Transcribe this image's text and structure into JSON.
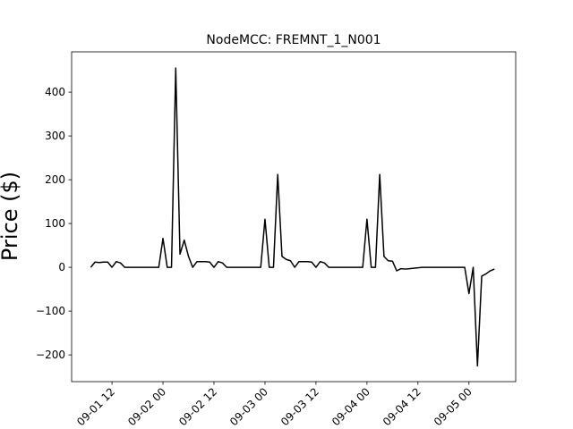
{
  "chart_data": {
    "type": "line",
    "title": "NodeMCC: FREMNT_1_N001",
    "y_label": "Price ($)",
    "color": "#000000",
    "x": [
      "09-01 07:00",
      "09-01 08:00",
      "09-01 09:00",
      "09-01 10:00",
      "09-01 11:00",
      "09-01 12:00",
      "09-01 13:00",
      "09-01 14:00",
      "09-01 15:00",
      "09-01 16:00",
      "09-01 17:00",
      "09-01 18:00",
      "09-01 19:00",
      "09-01 20:00",
      "09-01 21:00",
      "09-01 22:00",
      "09-01 23:00",
      "09-02 00:00",
      "09-02 01:00",
      "09-02 02:00",
      "09-02 03:00",
      "09-02 04:00",
      "09-02 05:00",
      "09-02 06:00",
      "09-02 07:00",
      "09-02 08:00",
      "09-02 09:00",
      "09-02 10:00",
      "09-02 11:00",
      "09-02 12:00",
      "09-02 13:00",
      "09-02 14:00",
      "09-02 15:00",
      "09-02 16:00",
      "09-02 17:00",
      "09-02 18:00",
      "09-02 19:00",
      "09-02 20:00",
      "09-02 21:00",
      "09-02 22:00",
      "09-02 23:00",
      "09-03 00:00",
      "09-03 01:00",
      "09-03 02:00",
      "09-03 03:00",
      "09-03 04:00",
      "09-03 05:00",
      "09-03 06:00",
      "09-03 07:00",
      "09-03 08:00",
      "09-03 09:00",
      "09-03 10:00",
      "09-03 11:00",
      "09-03 12:00",
      "09-03 13:00",
      "09-03 14:00",
      "09-03 15:00",
      "09-03 16:00",
      "09-03 17:00",
      "09-03 18:00",
      "09-03 19:00",
      "09-03 20:00",
      "09-03 21:00",
      "09-03 22:00",
      "09-03 23:00",
      "09-04 00:00",
      "09-04 01:00",
      "09-04 02:00",
      "09-04 03:00",
      "09-04 04:00",
      "09-04 05:00",
      "09-04 06:00",
      "09-04 07:00",
      "09-04 08:00",
      "09-04 09:00",
      "09-04 10:00",
      "09-04 11:00",
      "09-04 12:00",
      "09-04 13:00",
      "09-04 14:00",
      "09-04 15:00",
      "09-04 16:00",
      "09-04 17:00",
      "09-04 18:00",
      "09-04 19:00",
      "09-04 20:00",
      "09-04 21:00",
      "09-04 22:00",
      "09-04 23:00",
      "09-05 00:00",
      "09-05 01:00",
      "09-05 02:00",
      "09-05 03:00",
      "09-05 04:00",
      "09-05 05:00",
      "09-05 06:00"
    ],
    "values": [
      0,
      12,
      11,
      12,
      12,
      0,
      13,
      10,
      0,
      0,
      0,
      0,
      0,
      0,
      0,
      0,
      0,
      66,
      0,
      0,
      455,
      30,
      62,
      25,
      0,
      13,
      13,
      13,
      12,
      0,
      13,
      10,
      0,
      0,
      0,
      0,
      0,
      0,
      0,
      0,
      0,
      110,
      0,
      0,
      212,
      25,
      18,
      15,
      0,
      13,
      13,
      13,
      12,
      0,
      13,
      10,
      0,
      0,
      0,
      0,
      0,
      0,
      0,
      0,
      0,
      110,
      0,
      0,
      212,
      25,
      15,
      14,
      -8,
      -3,
      -4,
      -3,
      -2,
      -1,
      0,
      0,
      0,
      0,
      0,
      0,
      0,
      0,
      0,
      0,
      0,
      -60,
      0,
      -225,
      -20,
      -15,
      -8,
      -4
    ],
    "xlim": [
      "09-01 02:30",
      "09-05 11:00"
    ],
    "xticks": [
      {
        "value": "09-01 12:00",
        "label": "09-01 12"
      },
      {
        "value": "09-02 00:00",
        "label": "09-02 00"
      },
      {
        "value": "09-02 12:00",
        "label": "09-02 12"
      },
      {
        "value": "09-03 00:00",
        "label": "09-03 00"
      },
      {
        "value": "09-03 12:00",
        "label": "09-03 12"
      },
      {
        "value": "09-04 00:00",
        "label": "09-04 00"
      },
      {
        "value": "09-04 12:00",
        "label": "09-04 12"
      },
      {
        "value": "09-05 00:00",
        "label": "09-05 00"
      }
    ],
    "ylim": [
      -261,
      492
    ],
    "yticks": [
      {
        "value": -200,
        "label": "−200"
      },
      {
        "value": -100,
        "label": "−100"
      },
      0,
      100,
      200,
      300,
      400
    ]
  }
}
